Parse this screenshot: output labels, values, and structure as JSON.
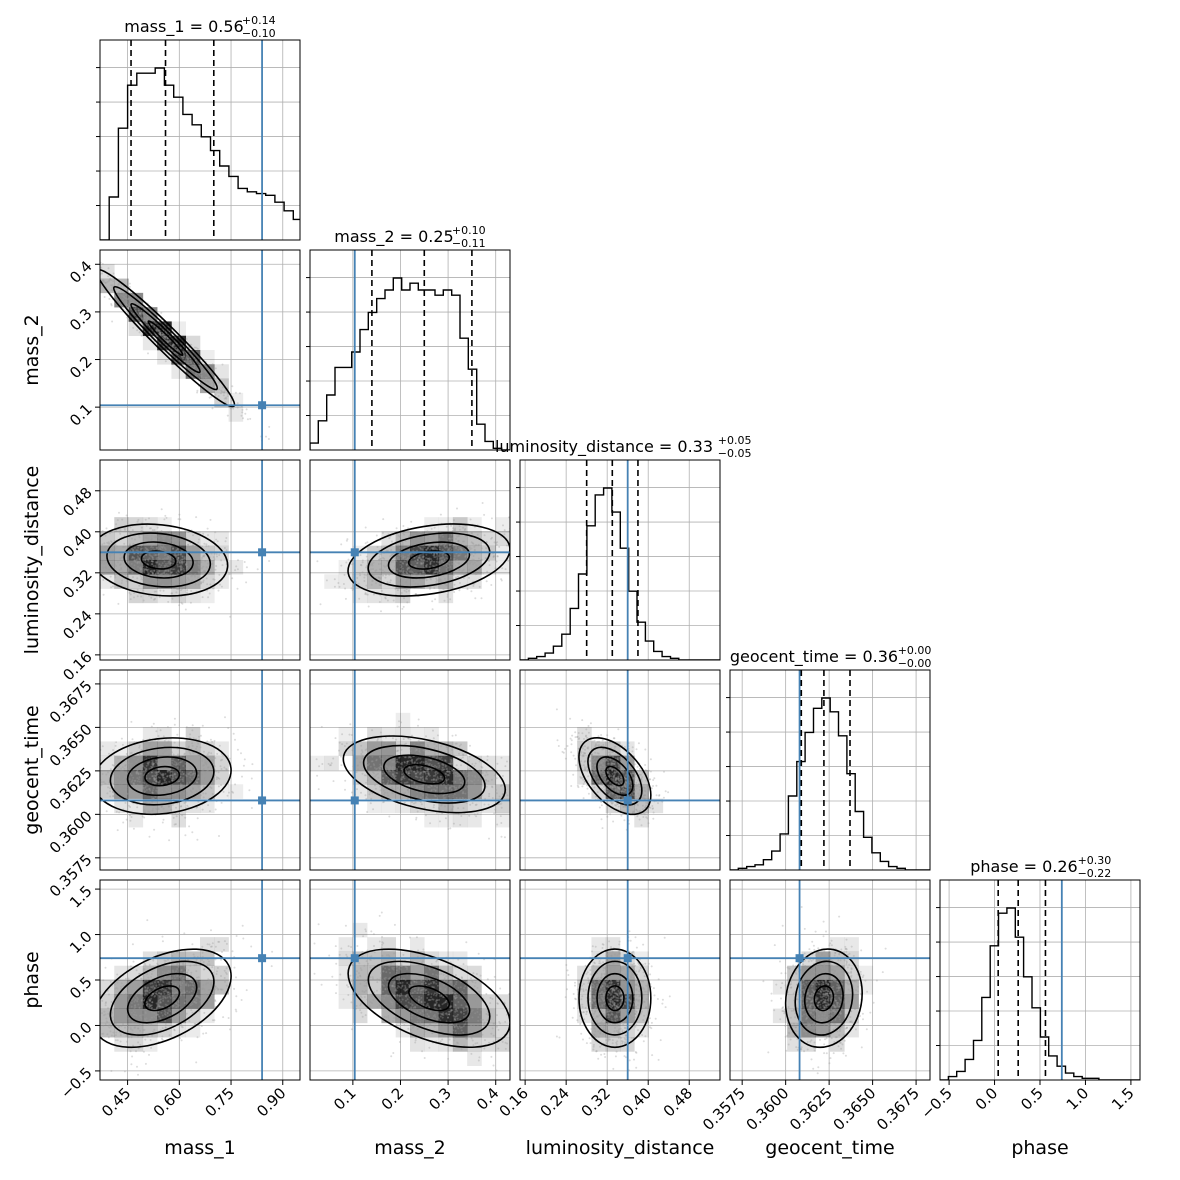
{
  "chart_data": {
    "type": "corner",
    "parameters": [
      "mass_1",
      "mass_2",
      "luminosity_distance",
      "geocent_time",
      "phase"
    ],
    "titles": [
      {
        "name": "mass_1",
        "median": "0.56",
        "plus": "+0.14",
        "minus": "−0.10"
      },
      {
        "name": "mass_2",
        "median": "0.25",
        "plus": "+0.10",
        "minus": "−0.11"
      },
      {
        "name": "luminosity_distance",
        "median": "0.33",
        "plus": "+0.05",
        "minus": "−0.05"
      },
      {
        "name": "geocent_time",
        "median": "0.36",
        "plus": "+0.00",
        "minus": "−0.00"
      },
      {
        "name": "phase",
        "median": "0.26",
        "plus": "+0.30",
        "minus": "−0.22"
      }
    ],
    "ranges": [
      [
        0.37,
        0.95
      ],
      [
        0.01,
        0.43
      ],
      [
        0.15,
        0.54
      ],
      [
        0.3568,
        0.3683
      ],
      [
        -0.6,
        1.6
      ]
    ],
    "ticks": [
      {
        "values": [
          0.45,
          0.6,
          0.75,
          0.9
        ],
        "labels": [
          "0.45",
          "0.60",
          "0.75",
          "0.90"
        ]
      },
      {
        "values": [
          0.1,
          0.2,
          0.3,
          0.4
        ],
        "labels": [
          "0.1",
          "0.2",
          "0.3",
          "0.4"
        ]
      },
      {
        "values": [
          0.16,
          0.24,
          0.32,
          0.4,
          0.48
        ],
        "labels": [
          "0.16",
          "0.24",
          "0.32",
          "0.40",
          "0.48"
        ]
      },
      {
        "values": [
          0.3575,
          0.36,
          0.3625,
          0.365,
          0.3675
        ],
        "labels": [
          "0.3575",
          "0.3600",
          "0.3625",
          "0.3650",
          "0.3675"
        ]
      },
      {
        "values": [
          -0.5,
          0.0,
          0.5,
          1.0,
          1.5
        ],
        "labels": [
          "−0.5",
          "0.0",
          "0.5",
          "1.0",
          "1.5"
        ]
      }
    ],
    "truths": [
      0.84,
      0.104,
      0.36,
      0.3608,
      0.74
    ],
    "quantiles": [
      [
        0.46,
        0.56,
        0.7
      ],
      [
        0.14,
        0.25,
        0.35
      ],
      [
        0.28,
        0.33,
        0.38
      ],
      [
        0.3609,
        0.3622,
        0.3637
      ],
      [
        0.04,
        0.26,
        0.56
      ]
    ],
    "histograms": [
      {
        "edges_start": 0.37,
        "bin_width": 0.0267,
        "counts": [
          0,
          0.25,
          0.65,
          0.9,
          0.97,
          0.97,
          1.0,
          0.9,
          0.83,
          0.73,
          0.67,
          0.6,
          0.52,
          0.43,
          0.37,
          0.3,
          0.28,
          0.27,
          0.26,
          0.22,
          0.17,
          0.12,
          0.08,
          0.05,
          0.02,
          0.01
        ]
      },
      {
        "edges_start": 0.01,
        "bin_width": 0.0175,
        "counts": [
          0.04,
          0.17,
          0.32,
          0.48,
          0.48,
          0.57,
          0.7,
          0.8,
          0.88,
          0.93,
          1.0,
          0.93,
          0.97,
          0.93,
          0.93,
          0.9,
          0.93,
          0.9,
          0.65,
          0.47,
          0.15,
          0.05,
          0.01,
          0.0
        ]
      },
      {
        "edges_start": 0.15,
        "bin_width": 0.0163,
        "counts": [
          0.0,
          0.01,
          0.02,
          0.04,
          0.08,
          0.15,
          0.3,
          0.5,
          0.78,
          0.96,
          1.0,
          0.86,
          0.65,
          0.4,
          0.22,
          0.11,
          0.05,
          0.02,
          0.01,
          0.0,
          0.0,
          0.0,
          0.0,
          0.0
        ]
      },
      {
        "edges_start": 0.3568,
        "bin_width": 0.00048,
        "counts": [
          0.0,
          0.01,
          0.02,
          0.03,
          0.06,
          0.11,
          0.21,
          0.43,
          0.63,
          0.8,
          0.94,
          1.0,
          0.92,
          0.78,
          0.56,
          0.34,
          0.19,
          0.1,
          0.05,
          0.02,
          0.01,
          0.0,
          0.0,
          0.0
        ]
      },
      {
        "edges_start": -0.6,
        "bin_width": 0.092,
        "counts": [
          0.0,
          0.02,
          0.05,
          0.12,
          0.23,
          0.48,
          0.78,
          0.97,
          1.0,
          0.83,
          0.6,
          0.42,
          0.25,
          0.14,
          0.08,
          0.04,
          0.02,
          0.01,
          0.01,
          0.0,
          0.0,
          0.0,
          0.0,
          0.0
        ]
      }
    ],
    "samples_2d": [
      {
        "x": "mass_1",
        "y": "mass_2",
        "mean": [
          0.56,
          0.245
        ],
        "sd": [
          0.1,
          0.072
        ],
        "corr": -0.97
      },
      {
        "x": "mass_1",
        "y": "luminosity_distance",
        "mean": [
          0.54,
          0.345
        ],
        "sd": [
          0.1,
          0.035
        ],
        "corr": -0.15
      },
      {
        "x": "mass_2",
        "y": "luminosity_distance",
        "mean": [
          0.26,
          0.345
        ],
        "sd": [
          0.085,
          0.035
        ],
        "corr": 0.3
      },
      {
        "x": "mass_1",
        "y": "geocent_time",
        "mean": [
          0.55,
          0.3622
        ],
        "sd": [
          0.1,
          0.0011
        ],
        "corr": 0.15
      },
      {
        "x": "mass_2",
        "y": "geocent_time",
        "mean": [
          0.25,
          0.3623
        ],
        "sd": [
          0.085,
          0.0011
        ],
        "corr": -0.4
      },
      {
        "x": "luminosity_distance",
        "y": "geocent_time",
        "mean": [
          0.335,
          0.3622
        ],
        "sd": [
          0.035,
          0.0011
        ],
        "corr": -0.5
      },
      {
        "x": "mass_1",
        "y": "phase",
        "mean": [
          0.55,
          0.3
        ],
        "sd": [
          0.1,
          0.27
        ],
        "corr": 0.45
      },
      {
        "x": "mass_2",
        "y": "phase",
        "mean": [
          0.26,
          0.3
        ],
        "sd": [
          0.085,
          0.27
        ],
        "corr": -0.5
      },
      {
        "x": "luminosity_distance",
        "y": "phase",
        "mean": [
          0.335,
          0.3
        ],
        "sd": [
          0.035,
          0.27
        ],
        "corr": 0.0
      },
      {
        "x": "geocent_time",
        "y": "phase",
        "mean": [
          0.3622,
          0.3
        ],
        "sd": [
          0.0011,
          0.27
        ],
        "corr": 0.1
      }
    ],
    "colors": {
      "truth": "#4682b4",
      "hist": "#000000",
      "contour": "#000000",
      "density": "#000000",
      "grid": "#b0b0b0",
      "points": "#9a9a9a"
    },
    "grid": true,
    "legend": "none"
  }
}
